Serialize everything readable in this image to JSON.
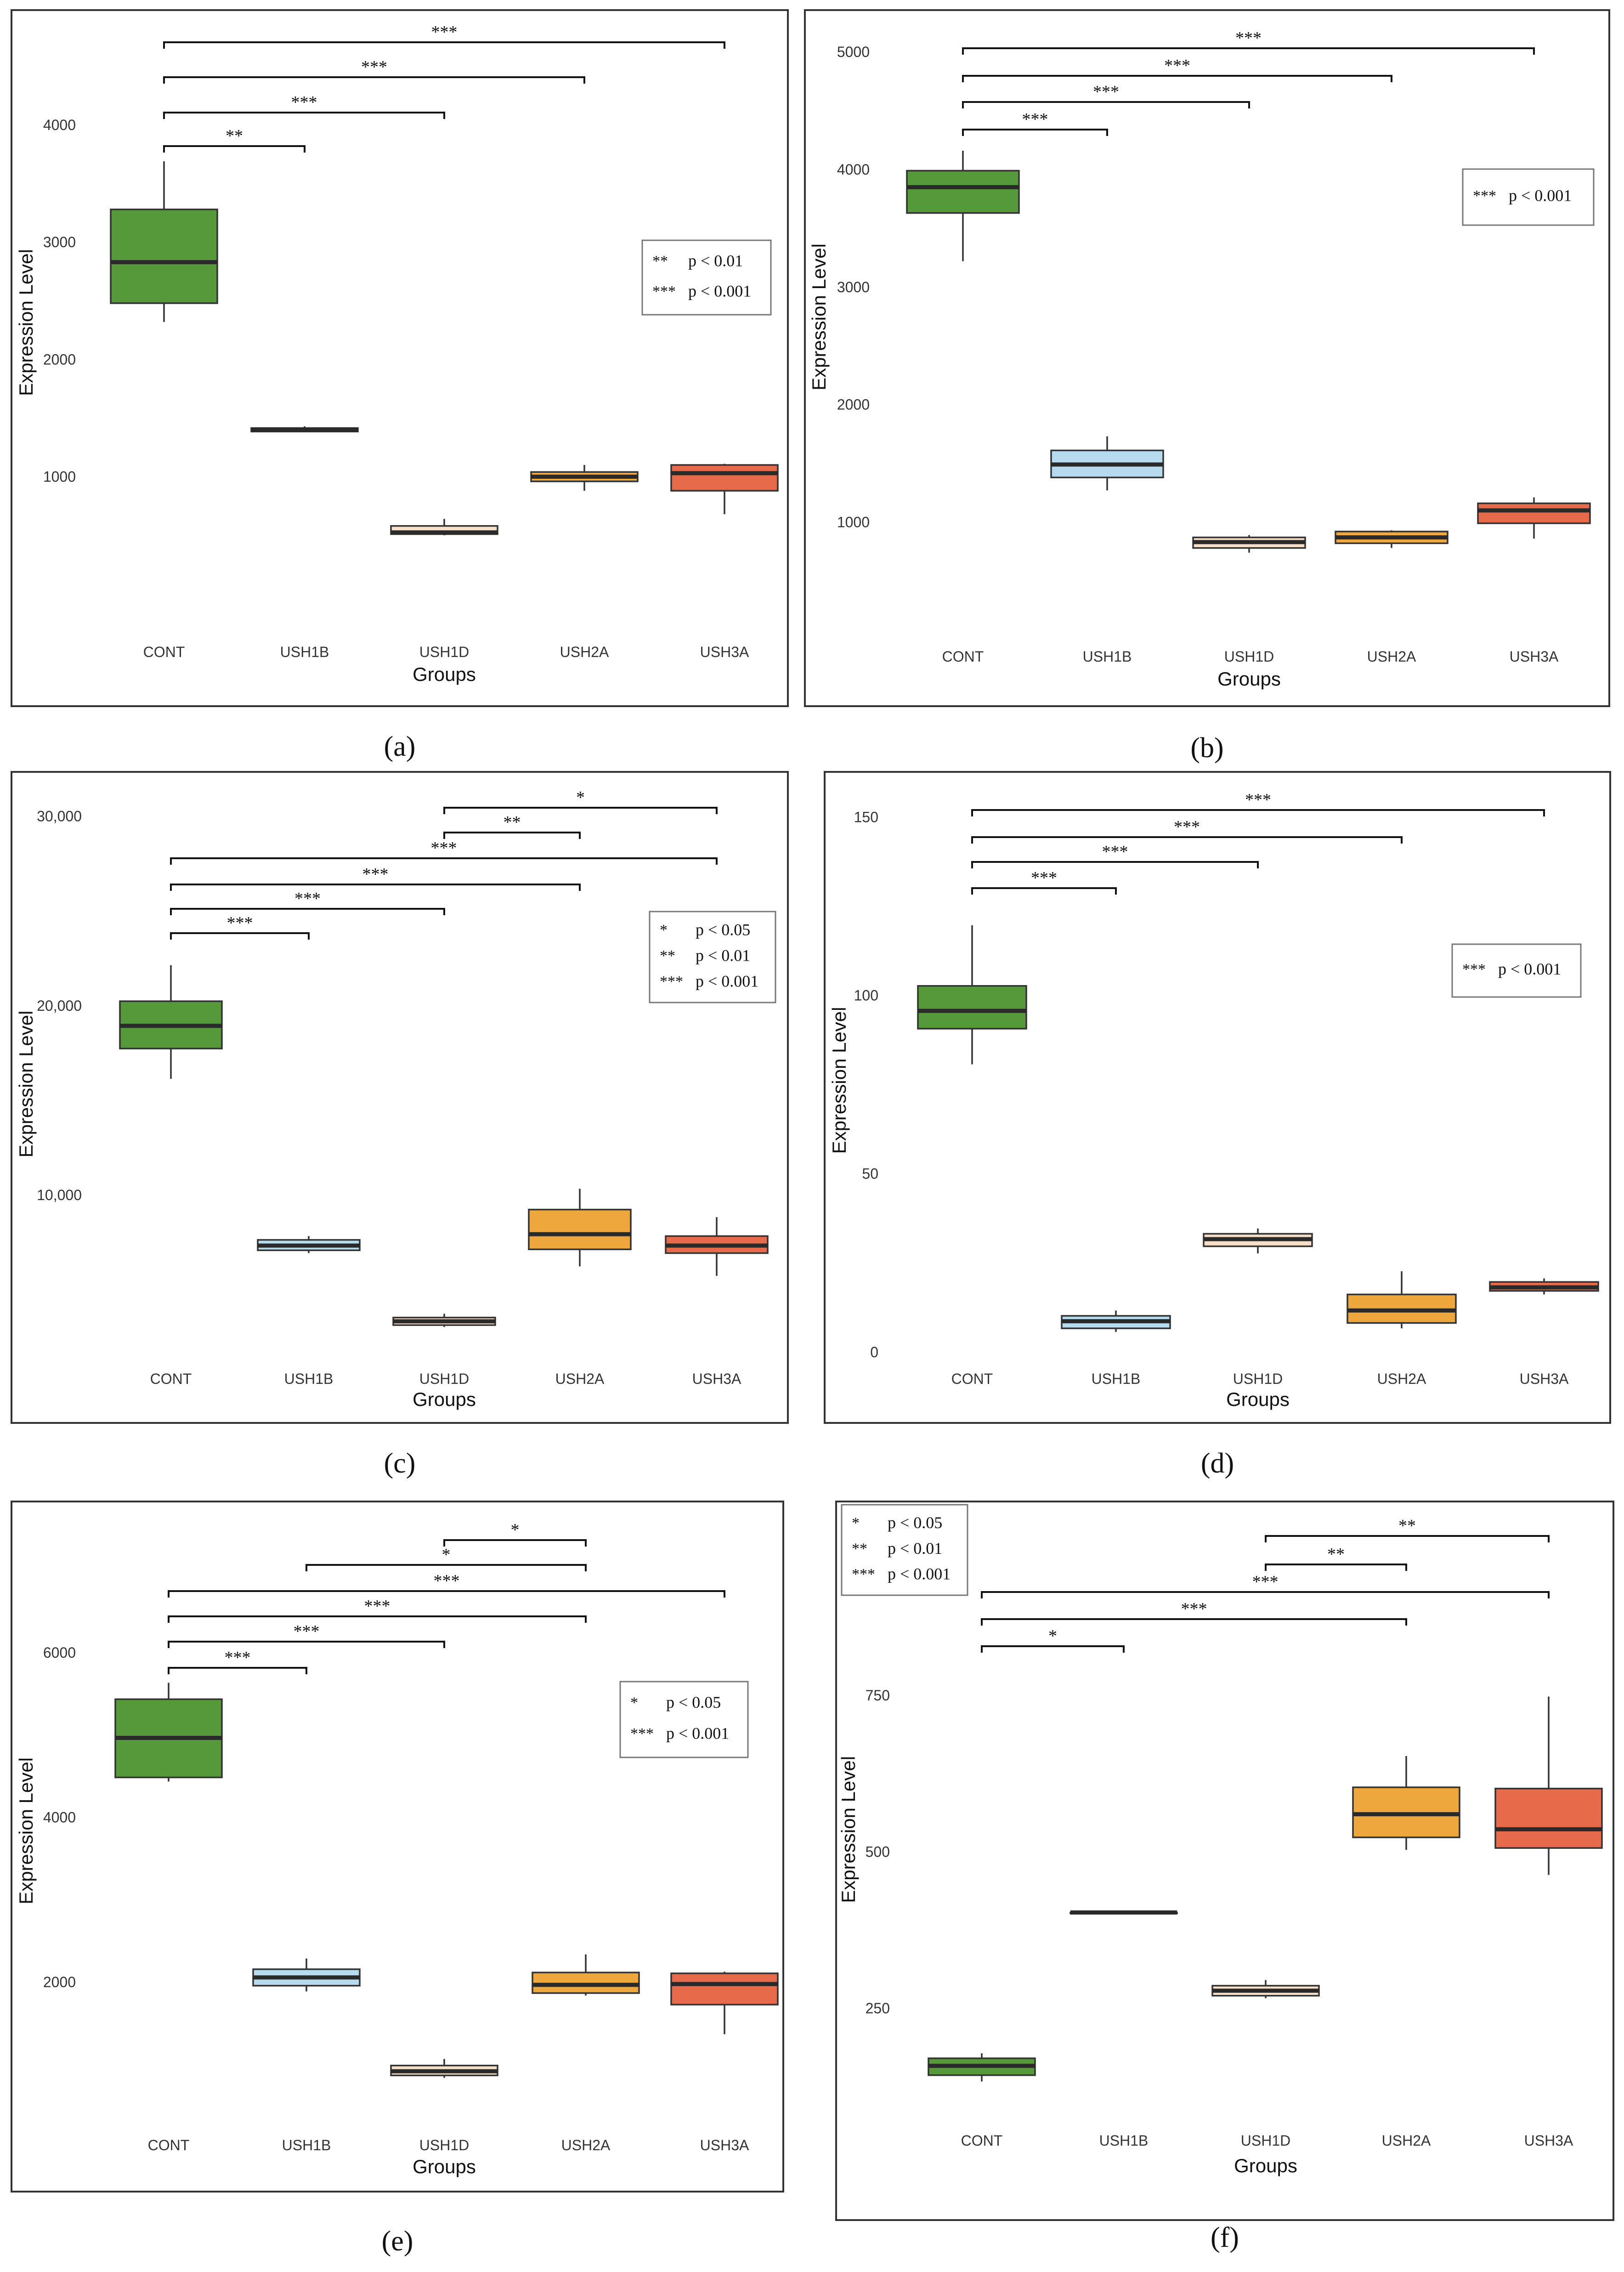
{
  "groups_title": "Groups",
  "y_title": "Expression Level",
  "colors": {
    "CONT": "#55993a",
    "USH1B": "#b7dbee",
    "USH1D": "#f8dfc8",
    "USH2A": "#eea73d",
    "USH3A": "#e76a4b"
  },
  "chart_data": [
    {
      "type": "box",
      "label": "(a)",
      "xlabel": "Groups",
      "ylabel": "Expression Level",
      "ylim": [
        -250,
        4900
      ],
      "yticks": [
        1000,
        2000,
        3000,
        4000
      ],
      "ytick_labels": [
        "1000",
        "2000",
        "3000",
        "4000"
      ],
      "categories": [
        "CONT",
        "USH1B",
        "USH1D",
        "USH2A",
        "USH3A"
      ],
      "boxes": [
        {
          "group": "CONT",
          "min": 2330,
          "q1": 2490,
          "median": 2840,
          "q3": 3290,
          "max": 3700
        },
        {
          "group": "USH1B",
          "min": 1390,
          "q1": 1395,
          "median": 1410,
          "q3": 1425,
          "max": 1440
        },
        {
          "group": "USH1D",
          "min": 510,
          "q1": 520,
          "median": 535,
          "q3": 590,
          "max": 650
        },
        {
          "group": "USH2A",
          "min": 890,
          "q1": 970,
          "median": 1010,
          "q3": 1050,
          "max": 1110
        },
        {
          "group": "USH3A",
          "min": 690,
          "q1": 890,
          "median": 1040,
          "q3": 1110,
          "max": 1120
        }
      ],
      "significance": [
        {
          "from": "CONT",
          "to": "USH1B",
          "label": "**"
        },
        {
          "from": "CONT",
          "to": "USH1D",
          "label": "***"
        },
        {
          "from": "CONT",
          "to": "USH2A",
          "label": "***"
        },
        {
          "from": "CONT",
          "to": "USH3A",
          "label": "***"
        }
      ],
      "legend": [
        {
          "stars": "**",
          "text": "p < 0.01"
        },
        {
          "stars": "***",
          "text": "p < 0.001"
        }
      ]
    },
    {
      "type": "box",
      "label": "(b)",
      "xlabel": "Groups",
      "ylabel": "Expression Level",
      "ylim": [
        390,
        5120
      ],
      "yticks": [
        1000,
        2000,
        3000,
        4000,
        5000
      ],
      "ytick_labels": [
        "1000",
        "2000",
        "3000",
        "4000",
        "5000"
      ],
      "categories": [
        "CONT",
        "USH1B",
        "USH1D",
        "USH2A",
        "USH3A"
      ],
      "boxes": [
        {
          "group": "CONT",
          "min": 3230,
          "q1": 3640,
          "median": 3860,
          "q3": 4000,
          "max": 4170
        },
        {
          "group": "USH1B",
          "min": 1280,
          "q1": 1390,
          "median": 1500,
          "q3": 1620,
          "max": 1740
        },
        {
          "group": "USH1D",
          "min": 750,
          "q1": 790,
          "median": 840,
          "q3": 880,
          "max": 900
        },
        {
          "group": "USH2A",
          "min": 790,
          "q1": 830,
          "median": 880,
          "q3": 930,
          "max": 940
        },
        {
          "group": "USH3A",
          "min": 870,
          "q1": 1000,
          "median": 1110,
          "q3": 1170,
          "max": 1220
        }
      ],
      "significance": [
        {
          "from": "CONT",
          "to": "USH1B",
          "label": "***"
        },
        {
          "from": "CONT",
          "to": "USH1D",
          "label": "***"
        },
        {
          "from": "CONT",
          "to": "USH2A",
          "label": "***"
        },
        {
          "from": "CONT",
          "to": "USH3A",
          "label": "***"
        }
      ],
      "legend": [
        {
          "stars": "***",
          "text": "p < 0.001"
        }
      ]
    },
    {
      "type": "box",
      "label": "(c)",
      "xlabel": "Groups",
      "ylabel": "Expression Level",
      "ylim": [
        850,
        31000
      ],
      "yticks": [
        10000,
        20000,
        30000
      ],
      "ytick_labels": [
        "10,000",
        "20,000",
        "30,000"
      ],
      "categories": [
        "CONT",
        "USH1B",
        "USH1D",
        "USH2A",
        "USH3A"
      ],
      "boxes": [
        {
          "group": "CONT",
          "min": 16200,
          "q1": 17800,
          "median": 19000,
          "q3": 20300,
          "max": 22200
        },
        {
          "group": "USH1B",
          "min": 7000,
          "q1": 7150,
          "median": 7400,
          "q3": 7700,
          "max": 7900
        },
        {
          "group": "USH1D",
          "min": 3100,
          "q1": 3200,
          "median": 3400,
          "q3": 3600,
          "max": 3800
        },
        {
          "group": "USH2A",
          "min": 6300,
          "q1": 7200,
          "median": 8000,
          "q3": 9300,
          "max": 10400
        },
        {
          "group": "USH3A",
          "min": 5800,
          "q1": 7000,
          "median": 7400,
          "q3": 7900,
          "max": 8900
        }
      ],
      "significance": [
        {
          "from": "CONT",
          "to": "USH1B",
          "label": "***"
        },
        {
          "from": "CONT",
          "to": "USH1D",
          "label": "***"
        },
        {
          "from": "CONT",
          "to": "USH2A",
          "label": "***"
        },
        {
          "from": "CONT",
          "to": "USH3A",
          "label": "***"
        },
        {
          "from": "USH1D",
          "to": "USH2A",
          "label": "**"
        },
        {
          "from": "USH1D",
          "to": "USH3A",
          "label": "*"
        }
      ],
      "legend": [
        {
          "stars": "*",
          "text": "p < 0.05"
        },
        {
          "stars": "**",
          "text": "p < 0.01"
        },
        {
          "stars": "***",
          "text": "p < 0.001"
        }
      ]
    },
    {
      "type": "box",
      "label": "(d)",
      "xlabel": "Groups",
      "ylabel": "Expression Level",
      "ylim": [
        -2,
        155
      ],
      "yticks": [
        0,
        50,
        100,
        150
      ],
      "ytick_labels": [
        "0",
        "50",
        "100",
        "150"
      ],
      "categories": [
        "CONT",
        "USH1B",
        "USH1D",
        "USH2A",
        "USH3A"
      ],
      "boxes": [
        {
          "group": "CONT",
          "min": 81,
          "q1": 91,
          "median": 96,
          "q3": 103,
          "max": 120
        },
        {
          "group": "USH1B",
          "min": 6,
          "q1": 7,
          "median": 9,
          "q3": 10.5,
          "max": 12
        },
        {
          "group": "USH1D",
          "min": 28,
          "q1": 30,
          "median": 32,
          "q3": 33.5,
          "max": 35
        },
        {
          "group": "USH2A",
          "min": 7,
          "q1": 8.5,
          "median": 12,
          "q3": 16.5,
          "max": 23
        },
        {
          "group": "USH3A",
          "min": 16.5,
          "q1": 17.5,
          "median": 18.5,
          "q3": 20,
          "max": 21
        }
      ],
      "significance": [
        {
          "from": "CONT",
          "to": "USH1B",
          "label": "***"
        },
        {
          "from": "CONT",
          "to": "USH1D",
          "label": "***"
        },
        {
          "from": "CONT",
          "to": "USH2A",
          "label": "***"
        },
        {
          "from": "CONT",
          "to": "USH3A",
          "label": "***"
        }
      ],
      "legend": [
        {
          "stars": "***",
          "text": "p < 0.001"
        }
      ]
    },
    {
      "type": "box",
      "label": "(e)",
      "xlabel": "Groups",
      "ylabel": "Expression Level",
      "ylim": [
        250,
        7450
      ],
      "yticks": [
        2000,
        4000,
        6000
      ],
      "ytick_labels": [
        "2000",
        "4000",
        "6000"
      ],
      "categories": [
        "CONT",
        "USH1B",
        "USH1D",
        "USH2A",
        "USH3A"
      ],
      "boxes": [
        {
          "group": "CONT",
          "min": 4450,
          "q1": 4500,
          "median": 4980,
          "q3": 5450,
          "max": 5650
        },
        {
          "group": "USH1B",
          "min": 1900,
          "q1": 1970,
          "median": 2070,
          "q3": 2170,
          "max": 2300
        },
        {
          "group": "USH1D",
          "min": 850,
          "q1": 880,
          "median": 930,
          "q3": 1000,
          "max": 1080
        },
        {
          "group": "USH2A",
          "min": 1850,
          "q1": 1880,
          "median": 1980,
          "q3": 2130,
          "max": 2350
        },
        {
          "group": "USH3A",
          "min": 1380,
          "q1": 1740,
          "median": 1990,
          "q3": 2120,
          "max": 2140
        }
      ],
      "significance": [
        {
          "from": "CONT",
          "to": "USH1B",
          "label": "***"
        },
        {
          "from": "CONT",
          "to": "USH1D",
          "label": "***"
        },
        {
          "from": "CONT",
          "to": "USH2A",
          "label": "***"
        },
        {
          "from": "CONT",
          "to": "USH3A",
          "label": "***"
        },
        {
          "from": "USH1B",
          "to": "USH2A",
          "label": "*"
        },
        {
          "from": "USH1D",
          "to": "USH2A",
          "label": "*"
        }
      ],
      "legend": [
        {
          "stars": "*",
          "text": "p < 0.05"
        },
        {
          "stars": "***",
          "text": "p < 0.001"
        }
      ]
    },
    {
      "type": "box",
      "label": "(f)",
      "xlabel": "Groups",
      "ylabel": "Expression Level",
      "ylim": [
        75,
        1000
      ],
      "yticks": [
        250,
        500,
        750
      ],
      "ytick_labels": [
        "250",
        "500",
        "750"
      ],
      "categories": [
        "CONT",
        "USH1B",
        "USH1D",
        "USH2A",
        "USH3A"
      ],
      "boxes": [
        {
          "group": "CONT",
          "min": 135,
          "q1": 145,
          "median": 160,
          "q3": 172,
          "max": 180
        },
        {
          "group": "USH1B",
          "min": 405,
          "q1": 405,
          "median": 405,
          "q3": 405,
          "max": 405
        },
        {
          "group": "USH1D",
          "min": 268,
          "q1": 272,
          "median": 280,
          "q3": 288,
          "max": 297
        },
        {
          "group": "USH2A",
          "min": 505,
          "q1": 525,
          "median": 562,
          "q3": 605,
          "max": 655
        },
        {
          "group": "USH3A",
          "min": 465,
          "q1": 508,
          "median": 538,
          "q3": 603,
          "max": 750
        }
      ],
      "significance": [
        {
          "from": "CONT",
          "to": "USH1B",
          "label": "*"
        },
        {
          "from": "CONT",
          "to": "USH2A",
          "label": "***"
        },
        {
          "from": "CONT",
          "to": "USH3A",
          "label": "***"
        },
        {
          "from": "USH1D",
          "to": "USH2A",
          "label": "**"
        },
        {
          "from": "USH1D",
          "to": "USH3A",
          "label": "**"
        }
      ],
      "legend": [
        {
          "stars": "*",
          "text": "p < 0.05"
        },
        {
          "stars": "**",
          "text": "p < 0.01"
        },
        {
          "stars": "***",
          "text": "p < 0.001"
        }
      ]
    }
  ]
}
